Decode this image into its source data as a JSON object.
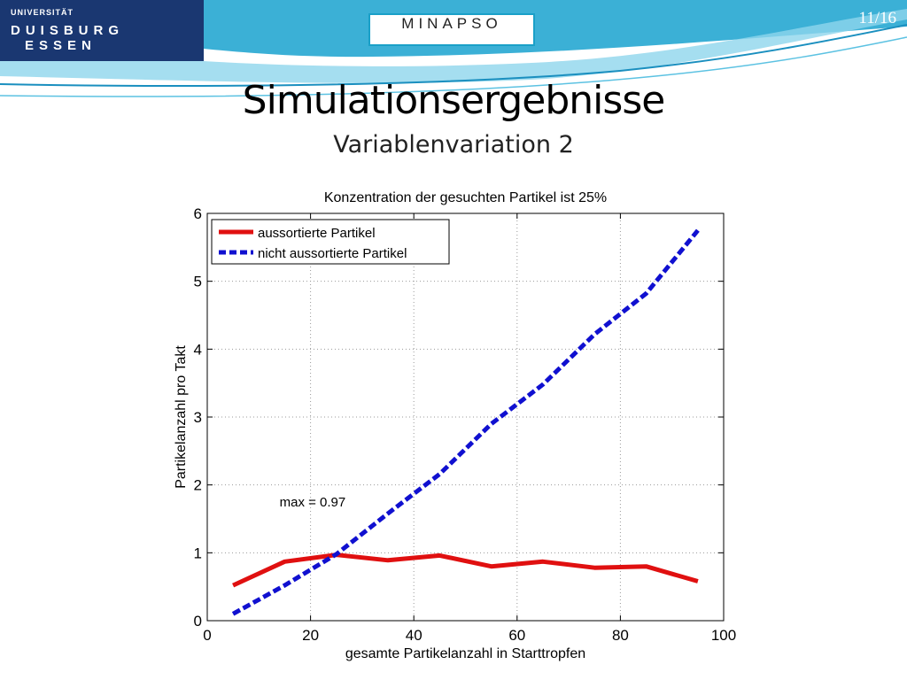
{
  "logo": {
    "line1": "UNIVERSITÄT",
    "line2": "DUISBURG",
    "line3": "ESSEN"
  },
  "header": {
    "project": "MINAPSO",
    "page": "11/16"
  },
  "slide": {
    "title": "Simulationsergebnisse",
    "subtitle": "Variablenvariation 2"
  },
  "colors": {
    "logo_bg": "#1a3771",
    "wave": "#2aa7cf",
    "series_red": "#e01010",
    "series_blue": "#1010d0"
  },
  "chart_data": {
    "type": "line",
    "title": "Konzentration der gesuchten Partikel ist 25%",
    "xlabel": "gesamte Partikelanzahl in Starttropfen",
    "ylabel": "Partikelanzahl pro Takt",
    "xlim": [
      0,
      100
    ],
    "ylim": [
      0,
      6
    ],
    "xticks": [
      0,
      20,
      40,
      60,
      80,
      100
    ],
    "yticks": [
      0,
      1,
      2,
      3,
      4,
      5,
      6
    ],
    "grid": true,
    "legend_position": "top-left",
    "x": [
      5,
      15,
      25,
      35,
      45,
      55,
      65,
      75,
      85,
      95
    ],
    "series": [
      {
        "name": "aussortierte Partikel",
        "style": "solid",
        "color": "#e01010",
        "values": [
          0.52,
          0.87,
          0.97,
          0.89,
          0.96,
          0.8,
          0.87,
          0.78,
          0.8,
          0.58
        ]
      },
      {
        "name": "nicht aussortierte Partikel",
        "style": "dashed",
        "color": "#1010d0",
        "values": [
          0.1,
          0.52,
          0.98,
          1.58,
          2.16,
          2.9,
          3.48,
          4.22,
          4.82,
          5.75
        ]
      }
    ],
    "annotations": [
      {
        "text": "max = 0.97",
        "x": 14,
        "y": 1.68
      }
    ]
  }
}
